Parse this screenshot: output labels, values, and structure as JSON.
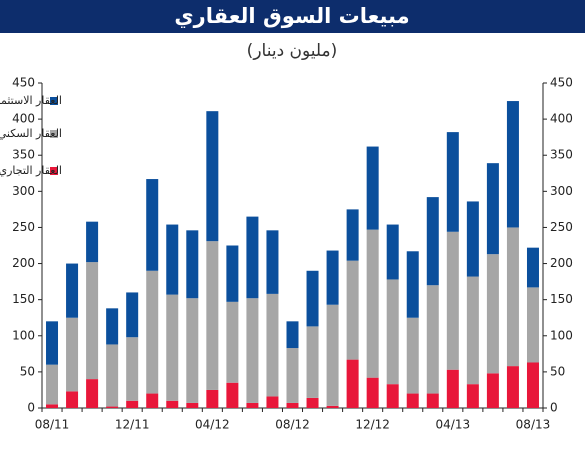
{
  "chart_data": {
    "type": "stacked_bar",
    "title": "مبيعات السوق العقاري",
    "subtitle": "(مليون دينار)",
    "categories": [
      "08/11",
      null,
      null,
      null,
      "12/11",
      null,
      null,
      null,
      "04/12",
      null,
      null,
      null,
      "08/12",
      null,
      null,
      null,
      "12/12",
      null,
      null,
      null,
      "04/13",
      null,
      null,
      null,
      "08/13"
    ],
    "series": [
      {
        "name": "العقار التجاري",
        "color": "#e8173a",
        "values": [
          5,
          23,
          40,
          2,
          10,
          20,
          10,
          7,
          25,
          35,
          7,
          16,
          7,
          14,
          3,
          67,
          42,
          33,
          20,
          20,
          53,
          33,
          48,
          58,
          63
        ]
      },
      {
        "name": "العقار السكني",
        "color": "#a6a6a6",
        "values": [
          55,
          102,
          162,
          86,
          88,
          170,
          147,
          145,
          206,
          112,
          145,
          142,
          76,
          99,
          140,
          137,
          205,
          145,
          105,
          150,
          191,
          149,
          165,
          192,
          104
        ]
      },
      {
        "name": "العقار الاستثماري",
        "color": "#0b4f9c",
        "values": [
          60,
          75,
          56,
          50,
          62,
          127,
          97,
          94,
          180,
          78,
          113,
          88,
          37,
          77,
          75,
          71,
          115,
          76,
          92,
          122,
          138,
          104,
          126,
          175,
          55
        ]
      }
    ],
    "ylim": [
      0,
      450
    ],
    "yticks": [
      0,
      50,
      100,
      150,
      200,
      250,
      300,
      350,
      400,
      450
    ],
    "y2lim": [
      0,
      450
    ],
    "y2ticks": [
      0,
      50,
      100,
      150,
      200,
      250,
      300,
      350,
      400,
      450
    ],
    "header_color": "#0d2d6c"
  }
}
